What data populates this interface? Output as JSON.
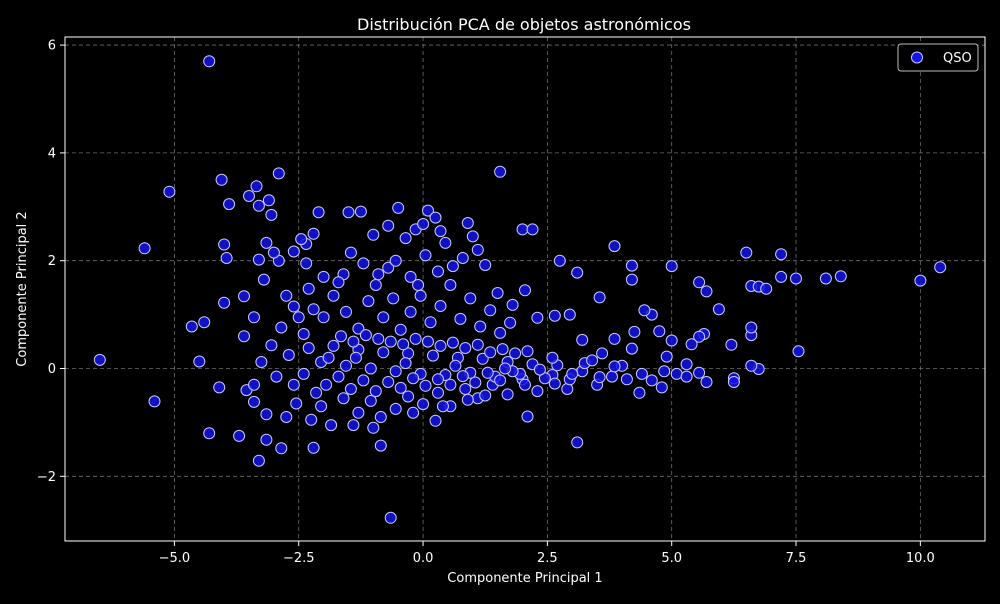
{
  "chart_data": {
    "type": "scatter",
    "title": "Distribución PCA de objetos astronómicos",
    "xlabel": "Componente Principal 1",
    "ylabel": "Componente Principal 2",
    "xlim": [
      -7.2,
      11.3
    ],
    "ylim": [
      -3.2,
      6.15
    ],
    "xticks": [
      -5.0,
      -2.5,
      0.0,
      2.5,
      5.0,
      7.5,
      10.0
    ],
    "xtick_labels": [
      "−5.0",
      "−2.5",
      "0.0",
      "2.5",
      "5.0",
      "7.5",
      "10.0"
    ],
    "yticks": [
      -2,
      0,
      2,
      4,
      6
    ],
    "ytick_labels": [
      "−2",
      "0",
      "2",
      "4",
      "6"
    ],
    "grid": true,
    "legend_position": "top-right",
    "colors": {
      "background": "#000000",
      "marker_fill": "#1414e6",
      "marker_edge": "#c8c8ff",
      "grid": "#6e6e6e",
      "axes": "#ffffff"
    },
    "series": [
      {
        "name": "QSO",
        "points": [
          [
            -4.3,
            5.7
          ],
          [
            -5.1,
            3.28
          ],
          [
            -6.5,
            0.16
          ],
          [
            -5.6,
            2.23
          ],
          [
            -5.4,
            -0.61
          ],
          [
            -4.5,
            0.13
          ],
          [
            -4.1,
            -0.35
          ],
          [
            -4.3,
            -1.2
          ],
          [
            -3.7,
            -1.25
          ],
          [
            -3.3,
            -1.71
          ],
          [
            -4.05,
            3.5
          ],
          [
            -2.9,
            3.62
          ],
          [
            -3.9,
            3.05
          ],
          [
            -4.0,
            2.3
          ],
          [
            -3.95,
            2.05
          ],
          [
            -3.35,
            3.38
          ],
          [
            -3.1,
            3.12
          ],
          [
            -3.05,
            2.85
          ],
          [
            -3.3,
            3.02
          ],
          [
            -3.5,
            3.2
          ],
          [
            -4.65,
            0.78
          ],
          [
            -4.4,
            0.86
          ],
          [
            -4.0,
            1.22
          ],
          [
            -3.6,
            1.34
          ],
          [
            -3.2,
            1.65
          ],
          [
            -2.1,
            2.9
          ],
          [
            -2.2,
            2.5
          ],
          [
            -1.5,
            2.9
          ],
          [
            -1.25,
            2.91
          ],
          [
            -0.5,
            2.98
          ],
          [
            0.1,
            2.93
          ],
          [
            0.25,
            2.8
          ],
          [
            1.55,
            3.65
          ],
          [
            0.9,
            2.7
          ],
          [
            0.35,
            2.55
          ],
          [
            2.0,
            2.58
          ],
          [
            2.2,
            2.58
          ],
          [
            2.75,
            2.0
          ],
          [
            3.1,
            1.78
          ],
          [
            3.85,
            2.27
          ],
          [
            4.2,
            1.91
          ],
          [
            4.2,
            1.65
          ],
          [
            3.55,
            1.32
          ],
          [
            5.0,
            1.9
          ],
          [
            5.55,
            1.6
          ],
          [
            5.7,
            1.43
          ],
          [
            5.95,
            1.1
          ],
          [
            6.5,
            2.15
          ],
          [
            6.6,
            1.53
          ],
          [
            6.75,
            1.52
          ],
          [
            6.9,
            1.48
          ],
          [
            7.2,
            2.12
          ],
          [
            7.2,
            1.7
          ],
          [
            7.5,
            1.67
          ],
          [
            8.1,
            1.67
          ],
          [
            8.4,
            1.71
          ],
          [
            10.0,
            1.63
          ],
          [
            10.4,
            1.88
          ],
          [
            7.55,
            0.32
          ],
          [
            6.75,
            -0.01
          ],
          [
            6.6,
            0.05
          ],
          [
            6.6,
            0.62
          ],
          [
            6.6,
            0.76
          ],
          [
            6.2,
            0.44
          ],
          [
            6.25,
            -0.18
          ],
          [
            6.25,
            -0.25
          ],
          [
            5.7,
            -0.25
          ],
          [
            5.65,
            0.64
          ],
          [
            5.55,
            0.59
          ],
          [
            5.4,
            0.45
          ],
          [
            5.3,
            0.08
          ],
          [
            5.0,
            0.52
          ],
          [
            4.9,
            0.22
          ],
          [
            4.85,
            -0.05
          ],
          [
            4.75,
            0.69
          ],
          [
            4.6,
            1.0
          ],
          [
            4.45,
            1.08
          ],
          [
            4.35,
            -0.45
          ],
          [
            4.25,
            0.68
          ],
          [
            4.2,
            0.37
          ],
          [
            3.1,
            -1.37
          ],
          [
            2.1,
            -0.89
          ],
          [
            0.25,
            -0.97
          ],
          [
            -0.85,
            -1.43
          ],
          [
            -0.65,
            -2.77
          ],
          [
            -2.2,
            -1.47
          ],
          [
            -2.85,
            -1.48
          ],
          [
            -3.15,
            -1.32
          ],
          [
            -3.15,
            -0.85
          ],
          [
            -3.4,
            -0.62
          ],
          [
            -3.55,
            -0.4
          ],
          [
            -2.35,
            2.31
          ],
          [
            -2.45,
            2.4
          ],
          [
            -2.6,
            2.17
          ],
          [
            -2.9,
            2.0
          ],
          [
            -3.0,
            2.15
          ],
          [
            -3.15,
            2.33
          ],
          [
            -3.3,
            2.02
          ],
          [
            -2.75,
            1.35
          ],
          [
            -2.3,
            1.48
          ],
          [
            -1.6,
            1.75
          ],
          [
            -1.45,
            2.15
          ],
          [
            -1.0,
            2.48
          ],
          [
            -0.7,
            2.65
          ],
          [
            -0.35,
            2.42
          ],
          [
            -0.15,
            2.58
          ],
          [
            0.0,
            2.68
          ],
          [
            0.45,
            2.33
          ],
          [
            1.0,
            2.45
          ],
          [
            1.1,
            2.2
          ],
          [
            1.25,
            1.92
          ],
          [
            0.8,
            2.05
          ],
          [
            0.3,
            1.8
          ],
          [
            -0.25,
            1.7
          ],
          [
            -0.7,
            1.87
          ],
          [
            1.8,
            1.18
          ],
          [
            2.05,
            1.45
          ],
          [
            2.3,
            0.94
          ],
          [
            2.65,
            0.98
          ],
          [
            2.95,
            1.0
          ],
          [
            3.2,
            0.53
          ],
          [
            3.6,
            0.28
          ],
          [
            3.85,
            0.55
          ],
          [
            4.0,
            0.05
          ],
          [
            4.1,
            -0.2
          ],
          [
            -2.0,
            0.95
          ],
          [
            -1.8,
            1.35
          ],
          [
            -1.55,
            1.05
          ],
          [
            -1.3,
            0.74
          ],
          [
            -1.1,
            1.25
          ],
          [
            -0.95,
            1.55
          ],
          [
            -0.8,
            0.95
          ],
          [
            -0.6,
            1.3
          ],
          [
            -0.45,
            0.72
          ],
          [
            -0.25,
            1.05
          ],
          [
            -0.05,
            1.35
          ],
          [
            0.15,
            0.86
          ],
          [
            0.35,
            1.16
          ],
          [
            0.55,
            1.55
          ],
          [
            0.75,
            0.92
          ],
          [
            0.95,
            1.3
          ],
          [
            1.15,
            0.78
          ],
          [
            1.35,
            1.08
          ],
          [
            1.55,
            0.66
          ],
          [
            1.75,
            0.85
          ],
          [
            -2.85,
            0.76
          ],
          [
            -2.6,
            1.15
          ],
          [
            -2.4,
            0.64
          ],
          [
            -2.2,
            1.1
          ],
          [
            -3.4,
            0.95
          ],
          [
            -3.6,
            0.6
          ],
          [
            -3.05,
            0.43
          ],
          [
            -2.7,
            0.25
          ],
          [
            -2.95,
            -0.15
          ],
          [
            -3.25,
            0.12
          ],
          [
            -3.4,
            -0.3
          ],
          [
            -2.55,
            -0.65
          ],
          [
            -2.25,
            -0.95
          ],
          [
            -2.05,
            -0.7
          ],
          [
            -1.85,
            -1.05
          ],
          [
            -1.6,
            -0.55
          ],
          [
            -1.3,
            -0.82
          ],
          [
            -1.05,
            -0.6
          ],
          [
            -0.85,
            -0.9
          ],
          [
            -0.55,
            -0.75
          ],
          [
            -0.3,
            -0.52
          ],
          [
            0.0,
            -0.66
          ],
          [
            0.3,
            -0.45
          ],
          [
            0.55,
            -0.7
          ],
          [
            0.85,
            -0.38
          ],
          [
            1.1,
            -0.55
          ],
          [
            1.4,
            -0.3
          ],
          [
            1.7,
            -0.48
          ],
          [
            2.0,
            -0.2
          ],
          [
            2.3,
            -0.42
          ],
          [
            2.6,
            -0.12
          ],
          [
            2.9,
            -0.38
          ],
          [
            3.2,
            -0.05
          ],
          [
            3.5,
            -0.3
          ],
          [
            3.8,
            -0.15
          ],
          [
            -2.3,
            0.38
          ],
          [
            -2.05,
            0.12
          ],
          [
            -1.8,
            0.42
          ],
          [
            -1.55,
            0.05
          ],
          [
            -1.3,
            0.35
          ],
          [
            -1.05,
            0.0
          ],
          [
            -0.8,
            0.3
          ],
          [
            -0.55,
            -0.05
          ],
          [
            -0.3,
            0.28
          ],
          [
            -0.05,
            -0.1
          ],
          [
            0.2,
            0.24
          ],
          [
            0.45,
            -0.12
          ],
          [
            0.7,
            0.2
          ],
          [
            0.95,
            -0.08
          ],
          [
            1.2,
            0.18
          ],
          [
            1.45,
            -0.15
          ],
          [
            1.7,
            0.12
          ],
          [
            1.95,
            -0.1
          ],
          [
            2.2,
            0.08
          ],
          [
            2.45,
            -0.18
          ],
          [
            2.7,
            0.06
          ],
          [
            2.95,
            -0.2
          ],
          [
            3.25,
            0.1
          ],
          [
            3.55,
            -0.16
          ],
          [
            3.85,
            0.04
          ],
          [
            -1.95,
            -0.3
          ],
          [
            -1.7,
            -0.15
          ],
          [
            -1.45,
            -0.38
          ],
          [
            -1.2,
            -0.22
          ],
          [
            -0.95,
            -0.42
          ],
          [
            -0.7,
            -0.25
          ],
          [
            -0.45,
            -0.36
          ],
          [
            -0.2,
            -0.18
          ],
          [
            0.05,
            -0.32
          ],
          [
            0.3,
            -0.2
          ],
          [
            0.55,
            -0.3
          ],
          [
            0.8,
            -0.14
          ],
          [
            1.05,
            -0.26
          ],
          [
            1.3,
            -0.08
          ],
          [
            1.55,
            -0.22
          ],
          [
            1.8,
            -0.05
          ],
          [
            2.05,
            -0.3
          ],
          [
            2.35,
            -0.02
          ],
          [
            2.65,
            -0.28
          ],
          [
            3.0,
            -0.1
          ],
          [
            -2.6,
            -0.3
          ],
          [
            -2.4,
            -0.1
          ],
          [
            -2.15,
            -0.45
          ],
          [
            -1.9,
            0.2
          ],
          [
            -1.65,
            0.6
          ],
          [
            -1.4,
            0.5
          ],
          [
            -1.15,
            0.62
          ],
          [
            -0.9,
            0.55
          ],
          [
            -0.65,
            0.5
          ],
          [
            -0.4,
            0.45
          ],
          [
            -0.15,
            0.55
          ],
          [
            0.1,
            0.5
          ],
          [
            0.35,
            0.42
          ],
          [
            0.6,
            0.48
          ],
          [
            0.85,
            0.38
          ],
          [
            1.1,
            0.44
          ],
          [
            1.35,
            0.3
          ],
          [
            1.6,
            0.36
          ],
          [
            1.85,
            0.28
          ],
          [
            2.1,
            0.32
          ],
          [
            -1.0,
            -1.1
          ],
          [
            -1.4,
            -1.05
          ],
          [
            -0.2,
            -0.82
          ],
          [
            0.4,
            -0.7
          ],
          [
            0.9,
            -0.58
          ],
          [
            1.25,
            -0.5
          ],
          [
            -2.75,
            -0.9
          ],
          [
            -2.5,
            0.95
          ],
          [
            -1.7,
            1.6
          ],
          [
            -1.2,
            1.95
          ],
          [
            -0.55,
            2.0
          ],
          [
            0.05,
            2.1
          ],
          [
            0.6,
            1.9
          ],
          [
            1.5,
            1.4
          ],
          [
            -0.1,
            1.55
          ],
          [
            -0.9,
            1.75
          ],
          [
            -2.0,
            1.7
          ],
          [
            -2.35,
            1.95
          ],
          [
            -1.35,
            0.2
          ],
          [
            -0.35,
            0.1
          ],
          [
            0.65,
            0.05
          ],
          [
            1.65,
            0.0
          ],
          [
            2.6,
            0.2
          ],
          [
            3.4,
            0.15
          ],
          [
            4.4,
            -0.1
          ],
          [
            4.6,
            -0.22
          ],
          [
            4.8,
            -0.35
          ],
          [
            5.1,
            -0.1
          ],
          [
            5.3,
            -0.15
          ],
          [
            5.55,
            -0.08
          ]
        ]
      }
    ]
  }
}
